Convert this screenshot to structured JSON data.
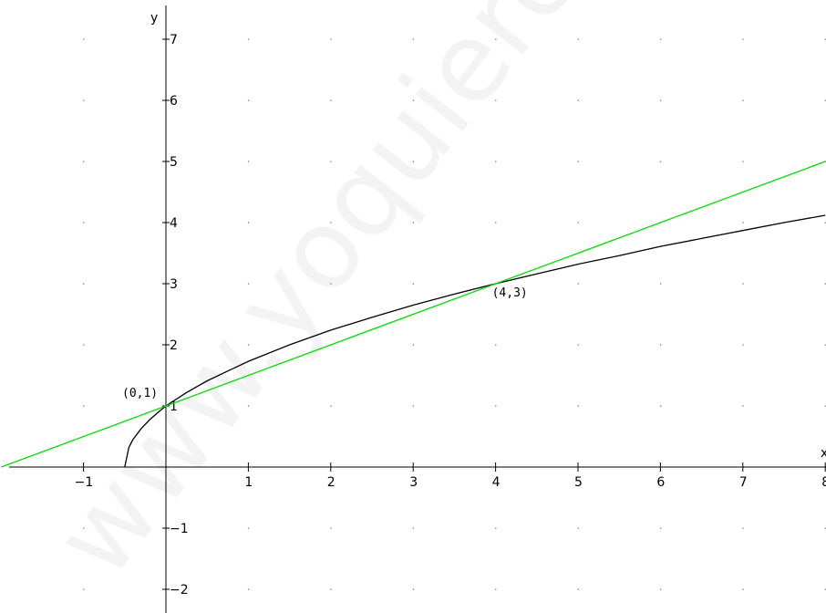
{
  "chart_data": {
    "type": "line",
    "xlabel": "x",
    "ylabel": "y",
    "xlim": [
      -2,
      8
    ],
    "ylim": [
      -2.3,
      7.7
    ],
    "x_ticks": [
      {
        "value": -1,
        "label": "−1"
      },
      {
        "value": 1,
        "label": "1"
      },
      {
        "value": 2,
        "label": "2"
      },
      {
        "value": 3,
        "label": "3"
      },
      {
        "value": 4,
        "label": "4"
      },
      {
        "value": 5,
        "label": "5"
      },
      {
        "value": 6,
        "label": "6"
      },
      {
        "value": 7,
        "label": "7"
      },
      {
        "value": 8,
        "label": "8"
      }
    ],
    "y_ticks": [
      {
        "value": -2,
        "label": "−2"
      },
      {
        "value": -1,
        "label": "−1"
      },
      {
        "value": 1,
        "label": "1"
      },
      {
        "value": 2,
        "label": "2"
      },
      {
        "value": 3,
        "label": "3"
      },
      {
        "value": 4,
        "label": "4"
      },
      {
        "value": 5,
        "label": "5"
      },
      {
        "value": 6,
        "label": "6"
      },
      {
        "value": 7,
        "label": "7"
      }
    ],
    "grid": "dots",
    "series": [
      {
        "color": "#000000",
        "x": [
          -0.5,
          -0.45,
          -0.4,
          -0.3,
          -0.2,
          -0.1,
          0,
          0.25,
          0.5,
          1,
          1.5,
          2,
          2.5,
          3,
          3.5,
          4,
          4.5,
          5,
          5.5,
          6,
          6.5,
          7,
          7.5,
          8
        ],
        "y": [
          0,
          0.32,
          0.45,
          0.63,
          0.77,
          0.89,
          1,
          1.22,
          1.41,
          1.73,
          2,
          2.24,
          2.45,
          2.65,
          2.83,
          3,
          3.16,
          3.32,
          3.46,
          3.61,
          3.74,
          3.87,
          4,
          4.12
        ]
      },
      {
        "color": "#00e000",
        "x": [
          -2,
          8
        ],
        "y": [
          0,
          5
        ]
      }
    ],
    "points": [
      {
        "x": 0,
        "y": 1,
        "label": "(0,1)",
        "anchor": "left"
      },
      {
        "x": 4,
        "y": 3,
        "label": "(4,3)",
        "anchor": "below-right"
      }
    ],
    "watermark": "www.yoquieroaprobar.es"
  }
}
